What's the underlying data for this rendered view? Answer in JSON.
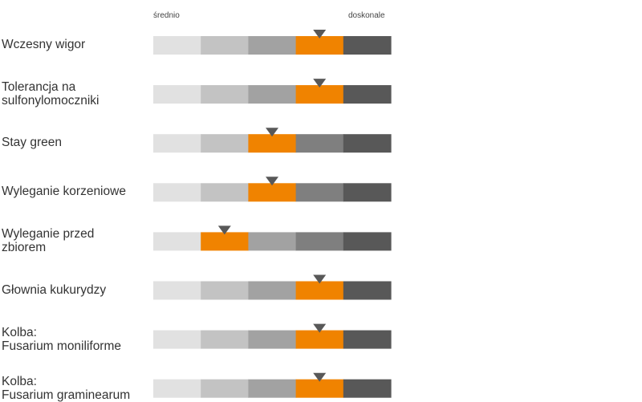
{
  "chart_data": {
    "type": "rating-scale",
    "scale_labels": {
      "low": "średnio",
      "high": "doskonale"
    },
    "segments": 5,
    "colors": {
      "scale": [
        "#e1e1e1",
        "#c3c3c3",
        "#a2a2a2",
        "#7f7f7f",
        "#585858"
      ],
      "highlight": "#f08300",
      "marker": "#585858"
    },
    "traits": [
      {
        "label": "Wczesny wigor",
        "rating": 4
      },
      {
        "label": "Tolerancja na\nsulfonylomoczniki",
        "rating": 4
      },
      {
        "label": "Stay green",
        "rating": 3
      },
      {
        "label": "Wyleganie korzeniowe",
        "rating": 3
      },
      {
        "label": "Wyleganie przed\nzbiorem",
        "rating": 2
      },
      {
        "label": "Głownia kukurydzy",
        "rating": 4
      },
      {
        "label": "Kolba:\nFusarium moniliforme",
        "rating": 4
      },
      {
        "label": "Kolba:\nFusarium graminearum",
        "rating": 4
      }
    ]
  }
}
